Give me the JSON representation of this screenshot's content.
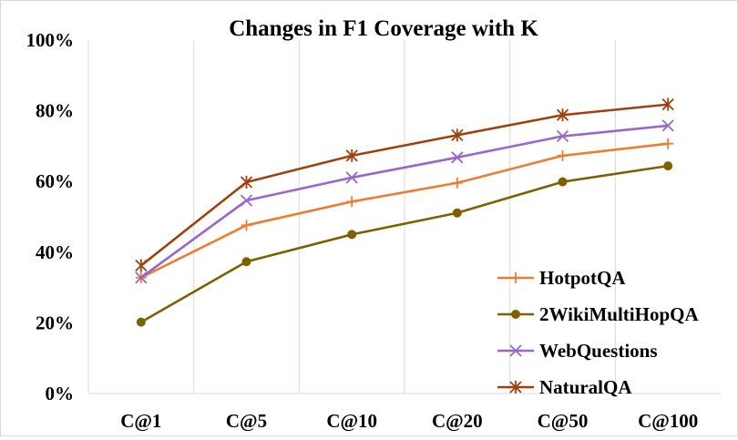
{
  "chart_data": {
    "type": "line",
    "title": "Changes in F1 Coverage  with K",
    "xlabel": "",
    "ylabel": "",
    "categories": [
      "C@1",
      "C@5",
      "C@10",
      "C@20",
      "C@50",
      "C@100"
    ],
    "ylim": [
      0,
      100
    ],
    "yticks": [
      0,
      20,
      40,
      60,
      80,
      100
    ],
    "ytick_labels": [
      "0%",
      "20%",
      "40%",
      "60%",
      "80%",
      "100%"
    ],
    "grid": "vertical",
    "legend_position": "bottom-right",
    "series": [
      {
        "name": "HotpotQA",
        "color": "#ED7D31",
        "marker": "plus",
        "values": [
          32.8,
          47.6,
          54.3,
          59.6,
          67.3,
          70.7
        ]
      },
      {
        "name": "2WikiMultiHopQA",
        "color": "#7F6000",
        "marker": "circle",
        "values": [
          20.2,
          37.3,
          45.0,
          51.1,
          59.9,
          64.4
        ]
      },
      {
        "name": "WebQuestions",
        "color": "#9966CC",
        "marker": "x",
        "values": [
          32.8,
          54.6,
          61.1,
          66.8,
          72.8,
          75.8
        ]
      },
      {
        "name": "NaturalQA",
        "color": "#A0410D",
        "marker": "star",
        "values": [
          36.2,
          59.8,
          67.3,
          73.1,
          78.8,
          81.8
        ]
      }
    ]
  }
}
